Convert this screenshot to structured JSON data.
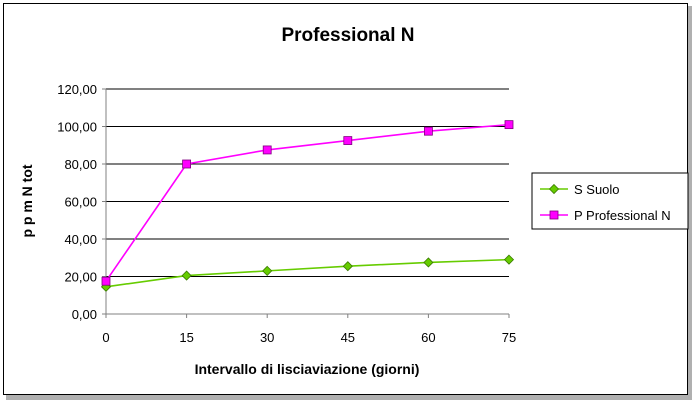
{
  "chart_data": {
    "type": "line",
    "title": "Professional N",
    "xlabel": "Intervallo di lisciaviazione (giorni)",
    "ylabel": "p p m N tot",
    "x": [
      0,
      15,
      30,
      45,
      60,
      75
    ],
    "x_tick_labels": [
      "0",
      "15",
      "30",
      "45",
      "60",
      "75"
    ],
    "ylim": [
      0,
      120
    ],
    "y_ticks": [
      0,
      20,
      40,
      60,
      80,
      100,
      120
    ],
    "y_tick_labels": [
      "0,00",
      "20,00",
      "40,00",
      "60,00",
      "80,00",
      "100,00",
      "120,00"
    ],
    "grid": "horizontal",
    "legend_position": "right",
    "series": [
      {
        "name": "S Suolo",
        "values": [
          14.5,
          20.5,
          23,
          25.5,
          27.5,
          29
        ],
        "color": "#66cc00",
        "marker": "diamond"
      },
      {
        "name": "P Professional N",
        "values": [
          17.5,
          80,
          87.5,
          92.5,
          97.5,
          101
        ],
        "color": "#ff00ff",
        "marker": "square"
      }
    ]
  }
}
